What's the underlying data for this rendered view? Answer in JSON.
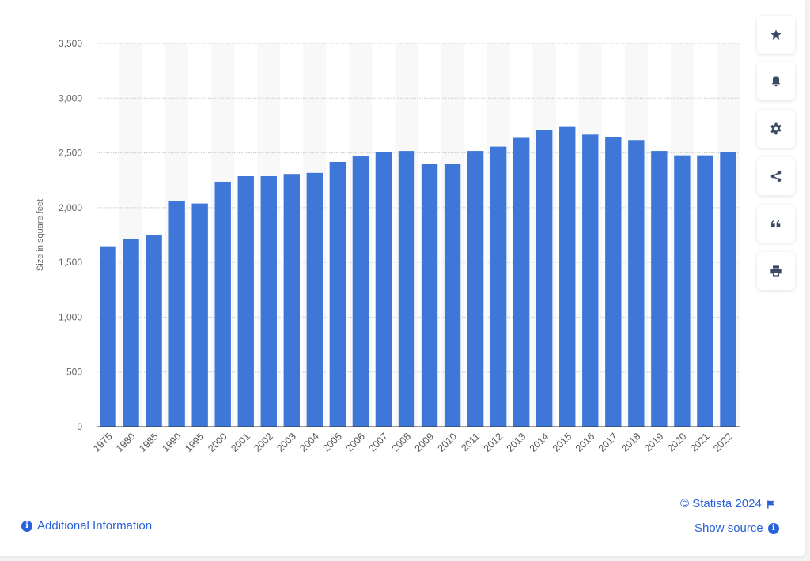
{
  "chart_data": {
    "type": "bar",
    "title": "",
    "xlabel": "",
    "ylabel": "Size in square feet",
    "ylim": [
      0,
      3500
    ],
    "yticks": [
      0,
      500,
      1000,
      1500,
      2000,
      2500,
      3000,
      3500
    ],
    "ytick_labels": [
      "0",
      "500",
      "1,000",
      "1,500",
      "2,000",
      "2,500",
      "3,000",
      "3,500"
    ],
    "grid": true,
    "bar_color": "#3e77d8",
    "categories": [
      "1975",
      "1980",
      "1985",
      "1990",
      "1995",
      "2000",
      "2001",
      "2002",
      "2003",
      "2004",
      "2005",
      "2006",
      "2007",
      "2008",
      "2009",
      "2010",
      "2011",
      "2012",
      "2013",
      "2014",
      "2015",
      "2016",
      "2017",
      "2018",
      "2019",
      "2020",
      "2021",
      "2022"
    ],
    "values": [
      1650,
      1720,
      1750,
      2060,
      2040,
      2240,
      2290,
      2290,
      2310,
      2320,
      2420,
      2470,
      2510,
      2520,
      2400,
      2400,
      2520,
      2560,
      2640,
      2710,
      2740,
      2670,
      2650,
      2620,
      2520,
      2480,
      2480,
      2510
    ]
  },
  "sidebar": [
    {
      "icon": "star-icon"
    },
    {
      "icon": "bell-icon"
    },
    {
      "icon": "gear-icon"
    },
    {
      "icon": "share-icon"
    },
    {
      "icon": "quote-icon"
    },
    {
      "icon": "print-icon"
    }
  ],
  "footer": {
    "copyright": "© Statista 2024",
    "show_source": "Show source",
    "additional_info": "Additional Information"
  },
  "accent_color": "#2962d9"
}
